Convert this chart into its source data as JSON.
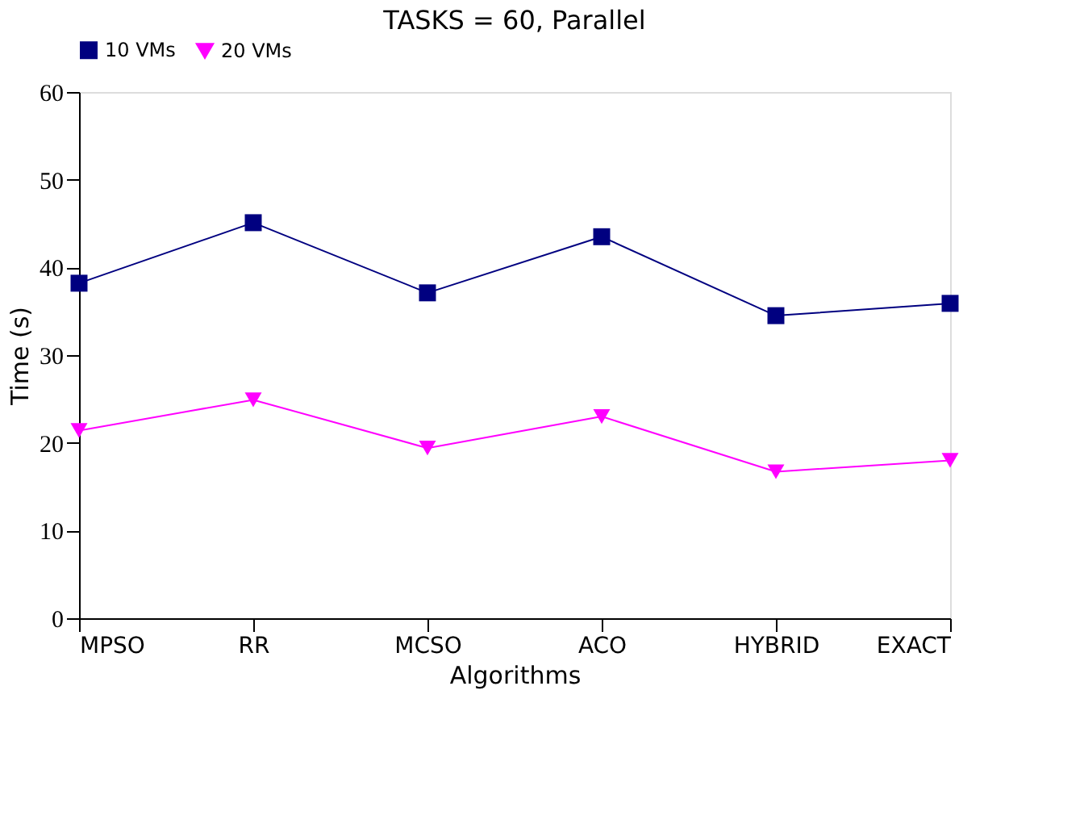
{
  "chart_data": {
    "type": "line",
    "title": "TASKS = 60, Parallel",
    "xlabel": "Algorithms",
    "ylabel": "Time (s)",
    "categories": [
      "MPSO",
      "RR",
      "MCSO",
      "ACO",
      "HYBRID",
      "EXACT"
    ],
    "series": [
      {
        "name": "10 VMs",
        "color": "#000080",
        "marker": "square",
        "values": [
          38.2,
          45.1,
          37.1,
          43.5,
          34.5,
          35.9
        ]
      },
      {
        "name": "20 VMs",
        "color": "#ff00ff",
        "marker": "triangle",
        "values": [
          21.4,
          24.9,
          19.4,
          23.0,
          16.7,
          18.0
        ]
      }
    ],
    "ylim": [
      0,
      60
    ],
    "yticks": [
      0,
      10,
      20,
      30,
      40,
      50,
      60
    ],
    "grid": false,
    "legend": "top",
    "line_style": "solid"
  }
}
